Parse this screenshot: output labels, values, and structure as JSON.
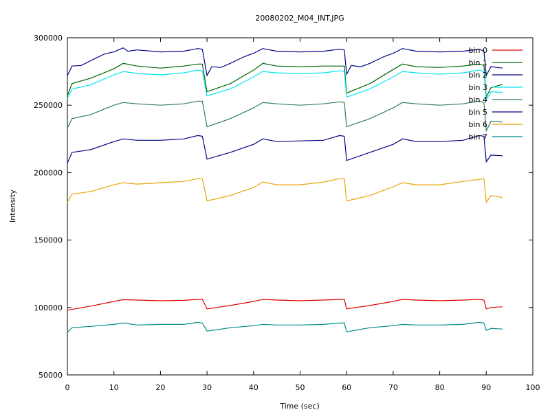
{
  "chart_data": {
    "type": "line",
    "title": "20080202_M04_INT.JPG",
    "xlabel": "Time (sec)",
    "ylabel": "Intensity",
    "xlim": [
      0,
      100
    ],
    "ylim": [
      50000,
      300000
    ],
    "xticks": [
      0,
      10,
      20,
      30,
      40,
      50,
      60,
      70,
      80,
      90,
      100
    ],
    "yticks": [
      50000,
      100000,
      150000,
      200000,
      250000,
      300000
    ],
    "grid": false,
    "legend": "top-right",
    "series": [
      {
        "name": "bin 0",
        "color": "#e00000",
        "x": [
          0,
          5,
          10,
          12,
          15,
          20,
          25,
          28,
          29,
          30,
          35,
          40,
          42,
          45,
          50,
          55,
          58.5,
          59.5,
          60,
          65,
          70,
          72,
          75,
          80,
          85,
          88.5,
          89.5,
          90,
          91,
          93.5
        ],
        "y": [
          98000,
          101000,
          104500,
          105800,
          105500,
          105000,
          105300,
          106000,
          106000,
          99000,
          101500,
          104500,
          106000,
          105500,
          105000,
          105500,
          106000,
          106000,
          99000,
          101500,
          104500,
          106000,
          105500,
          105000,
          105500,
          106000,
          105500,
          99000,
          100000,
          100500
        ]
      },
      {
        "name": "bin 1",
        "color": "#006400",
        "x": [
          0,
          1,
          5,
          10,
          12,
          15,
          20,
          25,
          28,
          29,
          30,
          35,
          40,
          42,
          45,
          50,
          55,
          58.5,
          59.5,
          60,
          65,
          70,
          72,
          75,
          80,
          85,
          88.5,
          89.5,
          90,
          91,
          93.5
        ],
        "y": [
          257000,
          266000,
          270000,
          277000,
          281000,
          279000,
          277500,
          279000,
          280500,
          280500,
          260000,
          266000,
          276000,
          281000,
          279000,
          278500,
          279000,
          279000,
          279000,
          259000,
          266000,
          276500,
          280500,
          278500,
          278000,
          279000,
          280500,
          279500,
          256000,
          263000,
          265500
        ]
      },
      {
        "name": "bin 2",
        "color": "#00008b",
        "x": [
          0,
          1,
          3,
          5,
          8,
          10,
          12,
          13,
          15,
          20,
          25,
          28,
          29,
          30,
          31,
          33,
          35,
          38,
          40,
          42,
          45,
          50,
          55,
          58.5,
          59.5,
          60,
          61,
          63,
          65,
          68,
          70,
          72,
          75,
          80,
          85,
          88.5,
          89.5,
          90,
          91,
          93.5
        ],
        "y": [
          272000,
          279000,
          279500,
          283000,
          288000,
          289500,
          292500,
          290000,
          291000,
          289500,
          290000,
          292000,
          291500,
          272000,
          278500,
          278000,
          281000,
          286000,
          288500,
          292000,
          290000,
          289500,
          290000,
          291500,
          291000,
          273000,
          279500,
          278500,
          281000,
          286000,
          288500,
          292000,
          290000,
          289500,
          290000,
          291500,
          290000,
          272000,
          278500,
          277500
        ]
      },
      {
        "name": "bin 3",
        "color": "#00e5ee",
        "x": [
          0,
          1,
          5,
          10,
          12,
          15,
          20,
          25,
          28,
          29,
          30,
          35,
          40,
          42,
          45,
          50,
          55,
          58.5,
          59.5,
          60,
          65,
          70,
          72,
          75,
          80,
          85,
          88.5,
          89.5,
          90,
          91,
          93.5
        ],
        "y": [
          255000,
          262000,
          265000,
          272500,
          275000,
          273500,
          272500,
          274000,
          276000,
          275500,
          257000,
          262000,
          271000,
          275000,
          274000,
          273500,
          274000,
          275500,
          275000,
          256000,
          262000,
          271000,
          275000,
          274000,
          273000,
          274000,
          276000,
          275000,
          254000,
          260000,
          259500
        ]
      },
      {
        "name": "bin 4",
        "color": "#2e7d5b",
        "x": [
          0,
          1,
          5,
          10,
          12,
          15,
          20,
          25,
          28,
          29,
          30,
          35,
          40,
          42,
          45,
          50,
          55,
          58.5,
          59.5,
          60,
          65,
          70,
          72,
          75,
          80,
          85,
          88.5,
          89.5,
          90,
          91,
          93.5
        ],
        "y": [
          233000,
          240000,
          243000,
          250000,
          252000,
          251000,
          250000,
          251000,
          253000,
          253000,
          234000,
          240000,
          248000,
          252000,
          251000,
          250000,
          251000,
          252500,
          252000,
          234000,
          240000,
          248000,
          252000,
          251000,
          250000,
          251000,
          253000,
          252000,
          231000,
          238000,
          237500
        ]
      },
      {
        "name": "bin 5",
        "color": "#000080",
        "x": [
          0,
          1,
          5,
          10,
          12,
          15,
          20,
          25,
          28,
          29,
          30,
          35,
          40,
          42,
          45,
          50,
          55,
          58.5,
          59.5,
          60,
          65,
          70,
          72,
          75,
          80,
          85,
          88.5,
          89.5,
          90,
          91,
          93.5
        ],
        "y": [
          207000,
          215000,
          217000,
          223000,
          225000,
          224000,
          224000,
          225000,
          227500,
          227000,
          210000,
          215000,
          221000,
          225000,
          223000,
          223500,
          224000,
          227500,
          227000,
          209000,
          215000,
          221000,
          225000,
          223000,
          223000,
          224000,
          227500,
          227000,
          208000,
          213000,
          212500
        ]
      },
      {
        "name": "bin 6",
        "color": "#e6a400",
        "x": [
          0,
          1,
          5,
          10,
          12,
          15,
          20,
          25,
          28,
          29,
          30,
          35,
          40,
          42,
          45,
          50,
          55,
          58.5,
          59.5,
          60,
          65,
          70,
          72,
          75,
          80,
          85,
          88.5,
          89.5,
          90,
          91,
          93.5
        ],
        "y": [
          178000,
          184000,
          186000,
          191000,
          192500,
          191500,
          192500,
          193500,
          195500,
          195500,
          179000,
          183000,
          189000,
          193000,
          191000,
          191000,
          193000,
          195500,
          195500,
          179000,
          183000,
          189500,
          192500,
          191000,
          191000,
          193500,
          195000,
          195500,
          178000,
          183000,
          181500
        ]
      },
      {
        "name": "bin 7",
        "color": "#008b8b",
        "x": [
          0,
          1,
          5,
          10,
          12,
          15,
          20,
          25,
          28,
          29,
          30,
          35,
          40,
          42,
          45,
          50,
          55,
          58.5,
          59.5,
          60,
          65,
          70,
          72,
          75,
          80,
          85,
          88.5,
          89.5,
          90,
          91,
          93.5
        ],
        "y": [
          81500,
          85000,
          86000,
          87500,
          88500,
          87000,
          87500,
          87500,
          89000,
          88500,
          82500,
          85000,
          86500,
          87500,
          87000,
          87000,
          87500,
          88500,
          88500,
          82000,
          85000,
          86500,
          87500,
          87000,
          87000,
          87500,
          89000,
          88500,
          83000,
          84500,
          84000
        ]
      }
    ]
  }
}
